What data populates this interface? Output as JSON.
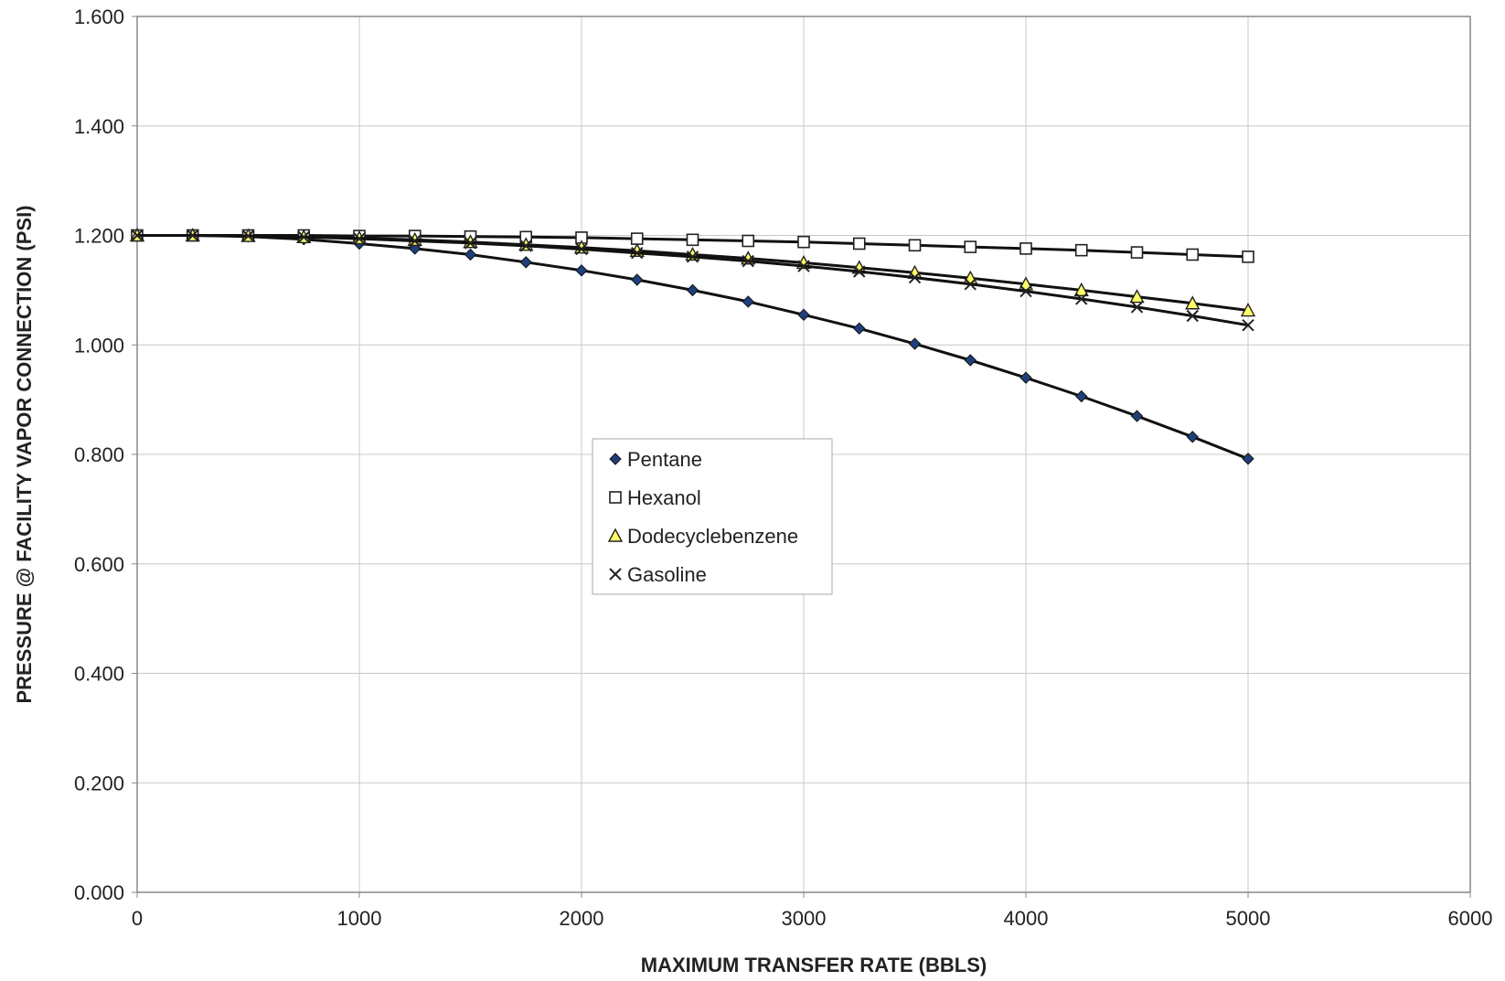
{
  "chart_data": {
    "type": "line",
    "title": "",
    "xlabel": "MAXIMUM TRANSFER RATE (BBLS)",
    "ylabel": "PRESSURE @ FACILITY VAPOR CONNECTION (PSI)",
    "xlim": [
      0,
      6000
    ],
    "ylim": [
      0,
      1.6
    ],
    "xticks": [
      0,
      1000,
      2000,
      3000,
      4000,
      5000,
      6000
    ],
    "xtick_labels": [
      "0",
      "1000",
      "2000",
      "3000",
      "4000",
      "5000",
      "6000"
    ],
    "yticks": [
      0,
      0.2,
      0.4,
      0.6,
      0.8,
      1.0,
      1.2,
      1.4,
      1.6
    ],
    "ytick_labels": [
      "0.000",
      "0.200",
      "0.400",
      "0.600",
      "0.800",
      "1.000",
      "1.200",
      "1.400",
      "1.600"
    ],
    "grid": true,
    "legend_position": "center",
    "x": [
      0,
      250,
      500,
      750,
      1000,
      1250,
      1500,
      1750,
      2000,
      2250,
      2500,
      2750,
      3000,
      3250,
      3500,
      3750,
      4000,
      4250,
      4500,
      4750,
      5000
    ],
    "series": [
      {
        "name": "Pentane",
        "marker": "diamond",
        "marker_color": "#2a4d8f",
        "values": [
          1.2,
          1.2,
          1.198,
          1.193,
          1.185,
          1.176,
          1.165,
          1.151,
          1.136,
          1.119,
          1.1,
          1.079,
          1.055,
          1.03,
          1.002,
          0.972,
          0.94,
          0.906,
          0.87,
          0.832,
          0.792
        ]
      },
      {
        "name": "Hexanol",
        "marker": "square",
        "marker_color": "#ffffff",
        "values": [
          1.2,
          1.2,
          1.2,
          1.2,
          1.199,
          1.199,
          1.198,
          1.197,
          1.196,
          1.194,
          1.192,
          1.19,
          1.188,
          1.185,
          1.182,
          1.179,
          1.176,
          1.173,
          1.169,
          1.165,
          1.161
        ]
      },
      {
        "name": "Dodecyclebenzene",
        "marker": "triangle",
        "marker_color": "#ffff66",
        "values": [
          1.2,
          1.2,
          1.199,
          1.197,
          1.195,
          1.192,
          1.188,
          1.183,
          1.178,
          1.172,
          1.165,
          1.158,
          1.15,
          1.141,
          1.132,
          1.122,
          1.111,
          1.1,
          1.088,
          1.076,
          1.063
        ]
      },
      {
        "name": "Gasoline",
        "marker": "x",
        "marker_color": "#222222",
        "values": [
          1.2,
          1.2,
          1.199,
          1.197,
          1.194,
          1.19,
          1.186,
          1.181,
          1.175,
          1.168,
          1.161,
          1.153,
          1.144,
          1.134,
          1.123,
          1.111,
          1.098,
          1.084,
          1.069,
          1.053,
          1.036
        ]
      }
    ]
  }
}
